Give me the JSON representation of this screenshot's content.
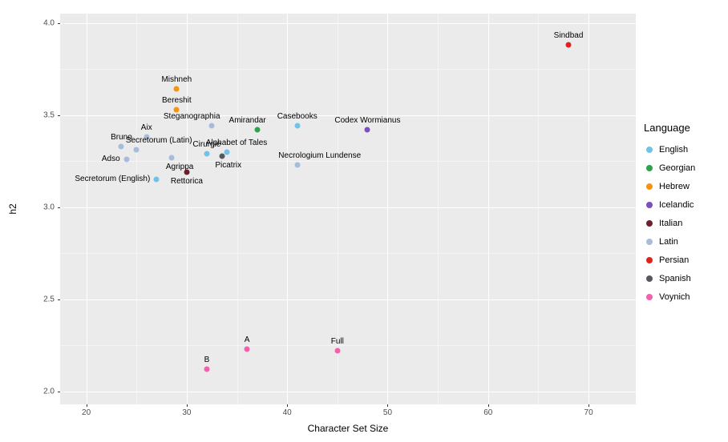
{
  "chart_data": {
    "type": "scatter",
    "title": "",
    "xlabel": "Character Set Size",
    "ylabel": "h2",
    "xlim": [
      17.4,
      74.7
    ],
    "ylim": [
      1.93,
      4.05
    ],
    "x_ticks": {
      "values": [
        20,
        30,
        40,
        50,
        60,
        70
      ],
      "labels": [
        "20",
        "30",
        "40",
        "50",
        "60",
        "70"
      ],
      "minor": [
        25,
        35,
        45,
        55,
        65
      ]
    },
    "y_ticks": {
      "values": [
        2.0,
        2.5,
        3.0,
        3.5,
        4.0
      ],
      "labels": [
        "2.0",
        "2.5",
        "3.0",
        "3.5",
        "4.0"
      ],
      "minor": [
        2.25,
        2.75,
        3.25,
        3.75
      ]
    },
    "grid": true,
    "panel_bg": "#EBEBEB",
    "grid_major_color": "#FFFFFF",
    "grid_minor_color": "#F4F4F4",
    "legend": {
      "title": "Language",
      "position": "right",
      "entries": [
        {
          "label": "English",
          "color": "#6FC3E8"
        },
        {
          "label": "Georgian",
          "color": "#2FA24C"
        },
        {
          "label": "Hebrew",
          "color": "#F5950F"
        },
        {
          "label": "Icelandic",
          "color": "#7A4FBF"
        },
        {
          "label": "Italian",
          "color": "#6B1F2F"
        },
        {
          "label": "Latin",
          "color": "#A7BCDB"
        },
        {
          "label": "Persian",
          "color": "#E2201C"
        },
        {
          "label": "Spanish",
          "color": "#55595E"
        },
        {
          "label": "Voynich",
          "color": "#F560AC"
        }
      ]
    },
    "language_colors": {
      "English": "#6FC3E8",
      "Georgian": "#2FA24C",
      "Hebrew": "#F5950F",
      "Icelandic": "#7A4FBF",
      "Italian": "#6B1F2F",
      "Latin": "#A7BCDB",
      "Persian": "#E2201C",
      "Spanish": "#55595E",
      "Voynich": "#F560AC"
    },
    "points": [
      {
        "label": "Sindbad",
        "x": 68,
        "y": 3.88,
        "language": "Persian",
        "anchor": "above"
      },
      {
        "label": "Mishneh",
        "x": 29,
        "y": 3.64,
        "language": "Hebrew",
        "anchor": "above"
      },
      {
        "label": "Bereshit",
        "x": 29,
        "y": 3.53,
        "language": "Hebrew",
        "anchor": "above"
      },
      {
        "label": "Steganographia",
        "x": 32.5,
        "y": 3.44,
        "language": "Latin",
        "anchor": "above",
        "dx": -25
      },
      {
        "label": "Amirandar",
        "x": 37,
        "y": 3.42,
        "language": "Georgian",
        "anchor": "above",
        "dx": -12
      },
      {
        "label": "Casebooks",
        "x": 41,
        "y": 3.44,
        "language": "English",
        "anchor": "above"
      },
      {
        "label": "Codex Wormianus",
        "x": 48,
        "y": 3.42,
        "language": "Icelandic",
        "anchor": "above"
      },
      {
        "label": "Aix",
        "x": 26,
        "y": 3.38,
        "language": "Latin",
        "anchor": "above"
      },
      {
        "label": "Bruno",
        "x": 23.5,
        "y": 3.33,
        "language": "Latin",
        "anchor": "above"
      },
      {
        "label": "Secretorum (Latin)",
        "x": 25,
        "y": 3.31,
        "language": "Latin",
        "anchor": "above",
        "dx": 28
      },
      {
        "label": "Cirurgie",
        "x": 32,
        "y": 3.29,
        "language": "English",
        "anchor": "above"
      },
      {
        "label": "Alphabet of Tales",
        "x": 34,
        "y": 3.3,
        "language": "English",
        "anchor": "above",
        "dx": 12
      },
      {
        "label": "Adso",
        "x": 24,
        "y": 3.26,
        "language": "Latin",
        "anchor": "left"
      },
      {
        "label": "Agrippa",
        "x": 28.5,
        "y": 3.27,
        "language": "Latin",
        "anchor": "below",
        "dx": 10
      },
      {
        "label": "Picatrix",
        "x": 33.5,
        "y": 3.275,
        "language": "Spanish",
        "anchor": "below",
        "dx": 8
      },
      {
        "label": "Necrologium Lundense",
        "x": 41,
        "y": 3.23,
        "language": "Latin",
        "anchor": "above",
        "dx": 28
      },
      {
        "label": "Rettorica",
        "x": 30,
        "y": 3.19,
        "language": "Italian",
        "anchor": "below"
      },
      {
        "label": "Secretorum (English)",
        "x": 27,
        "y": 3.15,
        "language": "English",
        "anchor": "left"
      },
      {
        "label": "A",
        "x": 36,
        "y": 2.23,
        "language": "Voynich",
        "anchor": "above"
      },
      {
        "label": "Full",
        "x": 45,
        "y": 2.22,
        "language": "Voynich",
        "anchor": "above"
      },
      {
        "label": "B",
        "x": 32,
        "y": 2.12,
        "language": "Voynich",
        "anchor": "above"
      }
    ]
  }
}
